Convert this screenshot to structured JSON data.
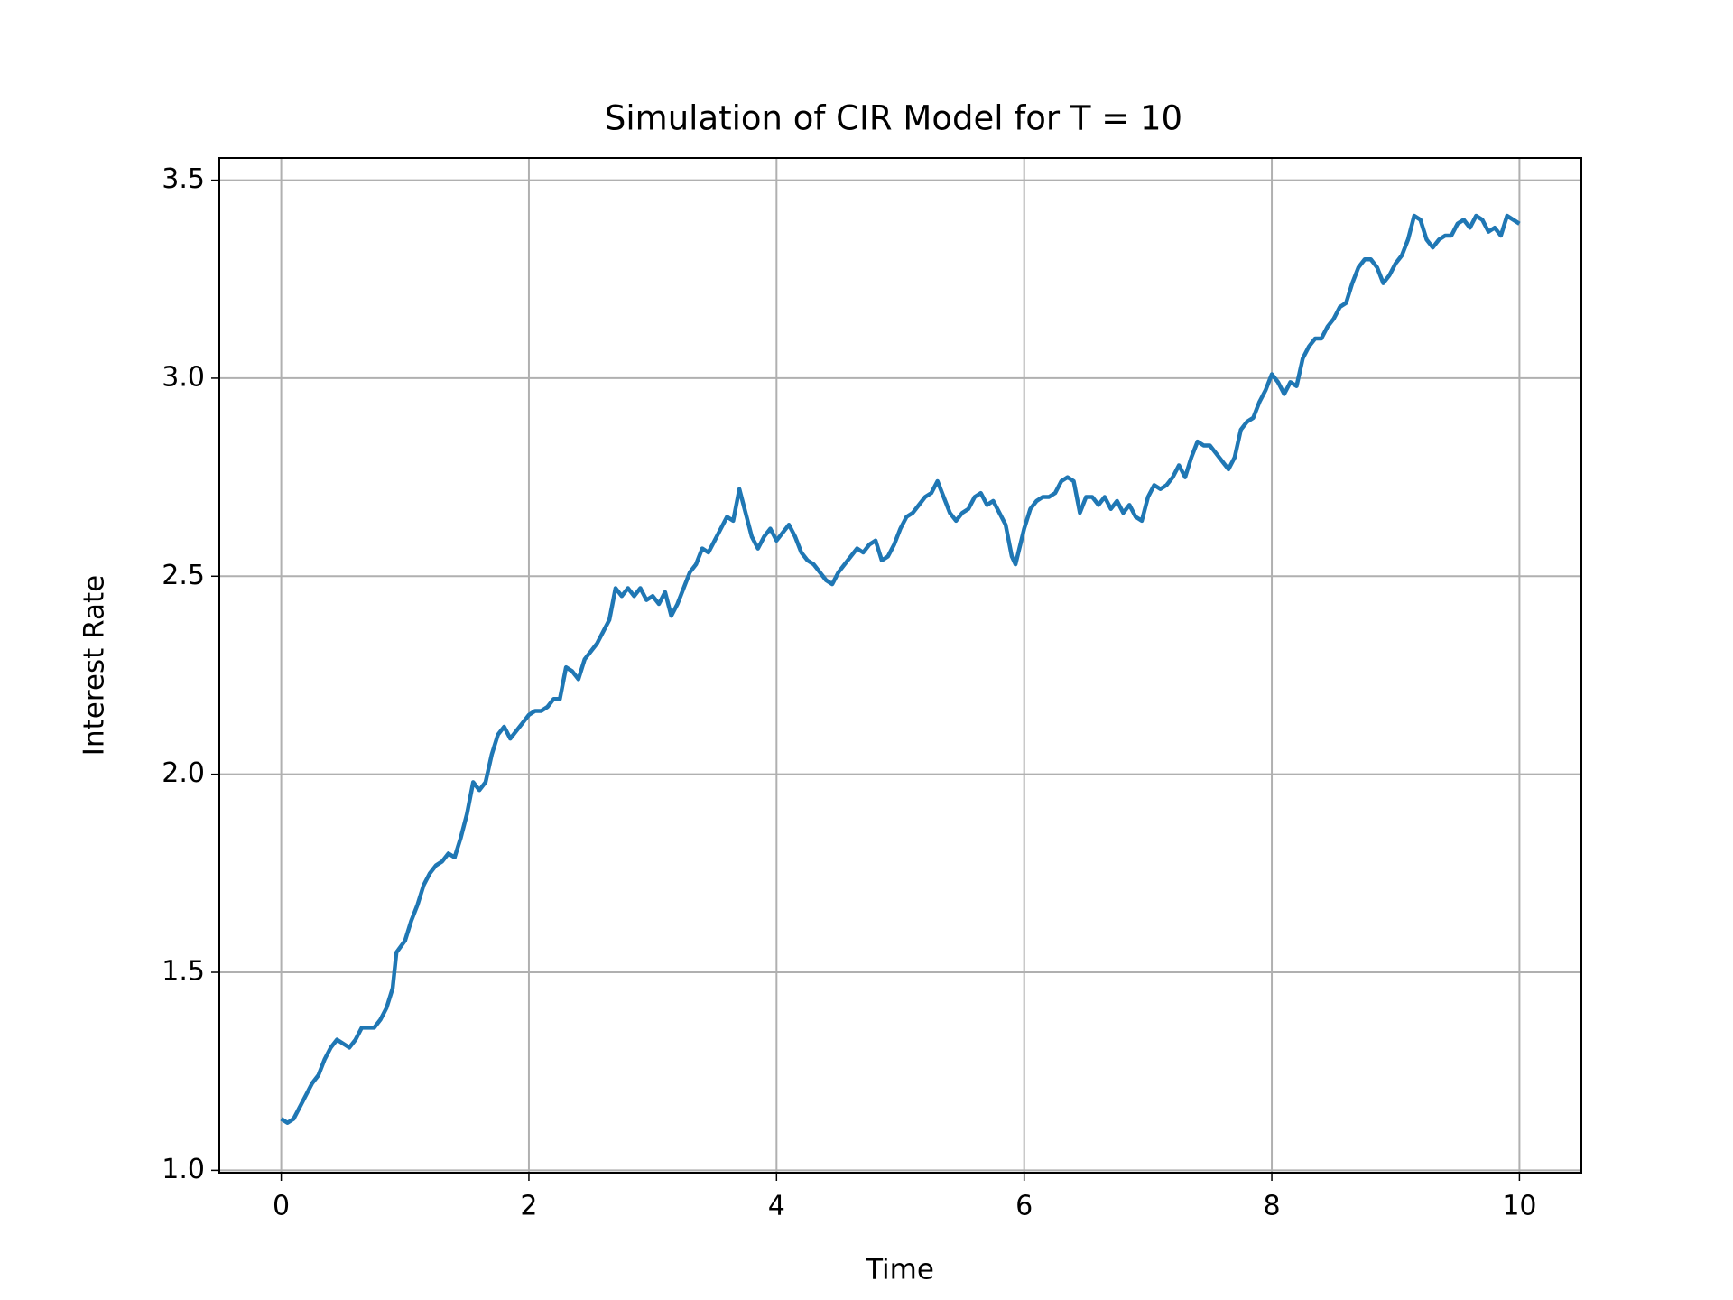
{
  "chart_data": {
    "type": "line",
    "title": "Simulation of CIR Model for T = 10",
    "x_label": "Time",
    "y_label": "Interest Rate",
    "xlim": [
      -0.5,
      10.5
    ],
    "ylim": [
      0.994,
      3.556
    ],
    "xticks": [
      0,
      2,
      4,
      6,
      8,
      10
    ],
    "yticks": [
      {
        "value": 1.0,
        "label": "1.0"
      },
      1.5,
      {
        "value": 2.0,
        "label": "2.0"
      },
      2.5,
      {
        "value": 3.0,
        "label": "3.0"
      },
      3.5
    ],
    "grid": true,
    "series": [
      {
        "color": "#1f77b4",
        "x": [
          0,
          0.05,
          0.1,
          0.15,
          0.2,
          0.25,
          0.3,
          0.35,
          0.4,
          0.45,
          0.5,
          0.55,
          0.6,
          0.65,
          0.7,
          0.75,
          0.8,
          0.85,
          0.9,
          0.93,
          1.0,
          1.05,
          1.1,
          1.15,
          1.2,
          1.25,
          1.3,
          1.35,
          1.4,
          1.45,
          1.5,
          1.55,
          1.6,
          1.65,
          1.7,
          1.75,
          1.8,
          1.85,
          1.9,
          1.95,
          2.0,
          2.05,
          2.1,
          2.15,
          2.2,
          2.25,
          2.3,
          2.35,
          2.4,
          2.45,
          2.5,
          2.55,
          2.6,
          2.65,
          2.7,
          2.75,
          2.8,
          2.85,
          2.9,
          2.95,
          3.0,
          3.05,
          3.1,
          3.15,
          3.2,
          3.25,
          3.3,
          3.35,
          3.4,
          3.45,
          3.5,
          3.55,
          3.6,
          3.65,
          3.7,
          3.75,
          3.8,
          3.85,
          3.9,
          3.95,
          4.0,
          4.05,
          4.1,
          4.15,
          4.2,
          4.25,
          4.3,
          4.35,
          4.4,
          4.45,
          4.5,
          4.55,
          4.6,
          4.65,
          4.7,
          4.75,
          4.8,
          4.85,
          4.9,
          4.95,
          5.0,
          5.05,
          5.1,
          5.15,
          5.2,
          5.25,
          5.3,
          5.35,
          5.4,
          5.45,
          5.5,
          5.55,
          5.6,
          5.65,
          5.7,
          5.75,
          5.8,
          5.85,
          5.9,
          5.93,
          6.0,
          6.05,
          6.1,
          6.15,
          6.2,
          6.25,
          6.3,
          6.35,
          6.4,
          6.45,
          6.5,
          6.55,
          6.6,
          6.65,
          6.7,
          6.75,
          6.8,
          6.85,
          6.9,
          6.95,
          7.0,
          7.05,
          7.1,
          7.15,
          7.2,
          7.25,
          7.3,
          7.35,
          7.4,
          7.45,
          7.5,
          7.55,
          7.6,
          7.65,
          7.7,
          7.75,
          7.8,
          7.85,
          7.9,
          7.95,
          8.0,
          8.05,
          8.1,
          8.15,
          8.2,
          8.25,
          8.3,
          8.35,
          8.4,
          8.45,
          8.5,
          8.55,
          8.6,
          8.65,
          8.7,
          8.75,
          8.8,
          8.85,
          8.9,
          8.95,
          9.0,
          9.05,
          9.1,
          9.15,
          9.2,
          9.25,
          9.3,
          9.35,
          9.4,
          9.45,
          9.5,
          9.55,
          9.6,
          9.65,
          9.7,
          9.75,
          9.8,
          9.85,
          9.9,
          9.95,
          10.0
        ],
        "values": [
          1.13,
          1.12,
          1.13,
          1.16,
          1.19,
          1.22,
          1.24,
          1.28,
          1.31,
          1.33,
          1.32,
          1.31,
          1.33,
          1.36,
          1.36,
          1.36,
          1.38,
          1.41,
          1.46,
          1.55,
          1.58,
          1.63,
          1.67,
          1.72,
          1.75,
          1.77,
          1.78,
          1.8,
          1.79,
          1.84,
          1.9,
          1.98,
          1.96,
          1.98,
          2.05,
          2.1,
          2.12,
          2.09,
          2.11,
          2.13,
          2.15,
          2.16,
          2.16,
          2.17,
          2.19,
          2.19,
          2.27,
          2.26,
          2.24,
          2.29,
          2.31,
          2.33,
          2.36,
          2.39,
          2.47,
          2.45,
          2.47,
          2.45,
          2.47,
          2.44,
          2.45,
          2.43,
          2.46,
          2.4,
          2.43,
          2.47,
          2.51,
          2.53,
          2.57,
          2.56,
          2.59,
          2.62,
          2.65,
          2.64,
          2.72,
          2.66,
          2.6,
          2.57,
          2.6,
          2.62,
          2.59,
          2.61,
          2.63,
          2.6,
          2.56,
          2.54,
          2.53,
          2.51,
          2.49,
          2.48,
          2.51,
          2.53,
          2.55,
          2.57,
          2.56,
          2.58,
          2.59,
          2.54,
          2.55,
          2.58,
          2.62,
          2.65,
          2.66,
          2.68,
          2.7,
          2.71,
          2.74,
          2.7,
          2.66,
          2.64,
          2.66,
          2.67,
          2.7,
          2.71,
          2.68,
          2.69,
          2.66,
          2.63,
          2.55,
          2.53,
          2.62,
          2.67,
          2.69,
          2.7,
          2.7,
          2.71,
          2.74,
          2.75,
          2.74,
          2.66,
          2.7,
          2.7,
          2.68,
          2.7,
          2.67,
          2.69,
          2.66,
          2.68,
          2.65,
          2.64,
          2.7,
          2.73,
          2.72,
          2.73,
          2.75,
          2.78,
          2.75,
          2.8,
          2.84,
          2.83,
          2.83,
          2.81,
          2.79,
          2.77,
          2.8,
          2.87,
          2.89,
          2.9,
          2.94,
          2.97,
          3.01,
          2.99,
          2.96,
          2.99,
          2.98,
          3.05,
          3.08,
          3.1,
          3.1,
          3.13,
          3.15,
          3.18,
          3.19,
          3.24,
          3.28,
          3.3,
          3.3,
          3.28,
          3.24,
          3.26,
          3.29,
          3.31,
          3.35,
          3.41,
          3.4,
          3.35,
          3.33,
          3.35,
          3.36,
          3.36,
          3.39,
          3.4,
          3.38,
          3.41,
          3.4,
          3.37,
          3.38,
          3.36,
          3.41,
          3.4,
          3.39
        ]
      }
    ]
  }
}
